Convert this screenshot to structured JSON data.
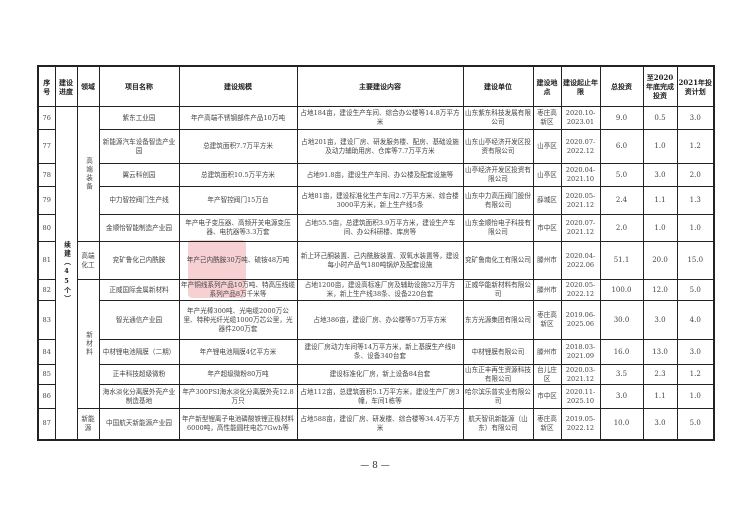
{
  "headers": [
    "序号",
    "建设进度",
    "领域",
    "项目名称",
    "建设规模",
    "主要建设内容",
    "建设单位",
    "建设地点",
    "建设起止年限",
    "总投资",
    "至2020年底完成投资",
    "2021年投资计划"
  ],
  "progress": "续建（45个）",
  "sectors": [
    {
      "label": "高端装备",
      "span": 5
    },
    {
      "label": "高端化工",
      "span": 1
    },
    {
      "label": "新材料",
      "span": 5
    },
    {
      "label": "新能源",
      "span": 1
    }
  ],
  "rows": [
    {
      "no": "76",
      "name": "紫东工业园",
      "scale": "年产高端不锈钢部件产品10万吨",
      "content": "占地184亩，建设生产车间、综合办公楼等14.8万平方米",
      "unit": "山东紫东科技发展有限公司",
      "place": "枣庄高新区",
      "period": "2020.10-2023.01",
      "total": "9.0",
      "done": "0.5",
      "plan": "3.0"
    },
    {
      "no": "77",
      "name": "新能源汽车设备智造产业园",
      "scale": "总建筑面积7.7万平方米",
      "content": "占地201亩，建设厂房、研发服务楼、配房、基础设施及动力辅助用房、仓库等7.7万平方米",
      "unit": "山东山亭经济开发区投资有限公司",
      "place": "山亭区",
      "period": "2020.07-2022.12",
      "total": "6.0",
      "done": "1.0",
      "plan": "1.2"
    },
    {
      "no": "78",
      "name": "翼云科创园",
      "scale": "总建筑面积10.5万平方米",
      "content": "占地91.8亩，建设生产车间、办公楼及配套设施等",
      "unit": "山亭经济开发区投资有限公司",
      "place": "山亭区",
      "period": "2020.04-2021.10",
      "total": "5.0",
      "done": "3.0",
      "plan": "2.0"
    },
    {
      "no": "79",
      "name": "中力智控阀门生产线",
      "scale": "年产智控阀门15万台",
      "content": "占地81亩，建设标准化生产车间2.7万平方米、综合楼3000平方米，新上生产线5条",
      "unit": "山东中力高压阀门股份有限公司",
      "place": "薛城区",
      "period": "2020.05-2021.12",
      "total": "2.4",
      "done": "1.1",
      "plan": "1.3"
    },
    {
      "no": "80",
      "name": "金顺怡智能制造产业园",
      "scale": "年产电子变压器、高频开关电源变压器、电抗器等3.3万套",
      "content": "占地55.5亩，总建筑面积3.9万平方米，建设生产车间、办公科研楼、库房等",
      "unit": "山东金顺怡电子科技有限公司",
      "place": "市中区",
      "period": "2020.07-2021.12",
      "total": "2.0",
      "done": "1.0",
      "plan": "1.0"
    },
    {
      "no": "81",
      "name": "兖矿鲁化己内酰胺",
      "scale": "年产己内酰胺30万吨、硫铵48万吨",
      "content": "新上环己酮装置、己内酰胺装置、双氧水装置等，建设每小时产品气180吨锅炉及配套设施",
      "unit": "兖矿鲁南化工有限公司",
      "place": "滕州市",
      "period": "2020.04-2022.06",
      "total": "51.1",
      "done": "20.0",
      "plan": "15.0"
    },
    {
      "no": "82",
      "name": "正威国际金属新材料",
      "scale": "年产铜线系列产品10万吨、特高压线缆系列产品8万千米等",
      "content": "占地1200亩，建设高标准厂房及辅助设施52万平方米，新上生产线38条、设备220台套",
      "unit": "正威华能新材料有限公司",
      "place": "滕州市",
      "period": "2020.05-2022.12",
      "total": "100.0",
      "done": "12.0",
      "plan": "5.0"
    },
    {
      "no": "83",
      "name": "智光通信产业园",
      "scale": "年产光棒300吨、光电缆2000万公里、特种光纤光缆1000万芯公里，光器件200万套",
      "content": "占地386亩，建设厂房、办公楼等57万平方米",
      "unit": "东方光源集团有限公司",
      "place": "枣庄高新区",
      "period": "2019.06-2025.06",
      "total": "30.0",
      "done": "3.0",
      "plan": "4.0"
    },
    {
      "no": "84",
      "name": "中材锂电池隔膜（二期）",
      "scale": "年产锂电池隔膜4亿平方米",
      "content": "建设厂房动力车间等14万平方米，新上基膜生产线8条、设备340台套",
      "unit": "中材锂膜有限公司",
      "place": "滕州市",
      "period": "2018.03-2021.09",
      "total": "16.0",
      "done": "13.0",
      "plan": "3.0"
    },
    {
      "no": "85",
      "name": "正丰科技超级微粉",
      "scale": "年产超级微粉80万吨",
      "content": "建设标准化厂房，新上设备84台套",
      "unit": "山东正丰再生资源科技有限公司",
      "place": "台儿庄区",
      "period": "2020.03-2021.12",
      "total": "3.5",
      "done": "2.3",
      "plan": "1.2"
    },
    {
      "no": "86",
      "name": "海水淡化分离膜外壳产业制造基地",
      "scale": "年产300PSI海水淡化分离膜外壳12.8万只",
      "content": "占地112亩，总建筑面积5.1万平方米，建设生产厂房3幢，车间1栋等",
      "unit": "哈尔滨乐普实业有限公司",
      "place": "市中区",
      "period": "2020.11-2025.10",
      "total": "3.0",
      "done": "1.1",
      "plan": "1.0"
    },
    {
      "no": "87",
      "name": "中国航天新能源产业园",
      "scale": "年产新型锂离子电池磷酸铁锂正极材料6000吨，高性能圆柱电芯7Gwh等",
      "content": "占地588亩，建设厂房、研发楼、综合楼等34.4万平方米",
      "unit": "航天智讯新能源（山东）有限公司",
      "place": "枣庄高新区",
      "period": "2019.05-2022.12",
      "total": "10.0",
      "done": "3.0",
      "plan": "5.0"
    }
  ],
  "page_number": "— 8 —",
  "watermark": "大众报业 大众新闻"
}
